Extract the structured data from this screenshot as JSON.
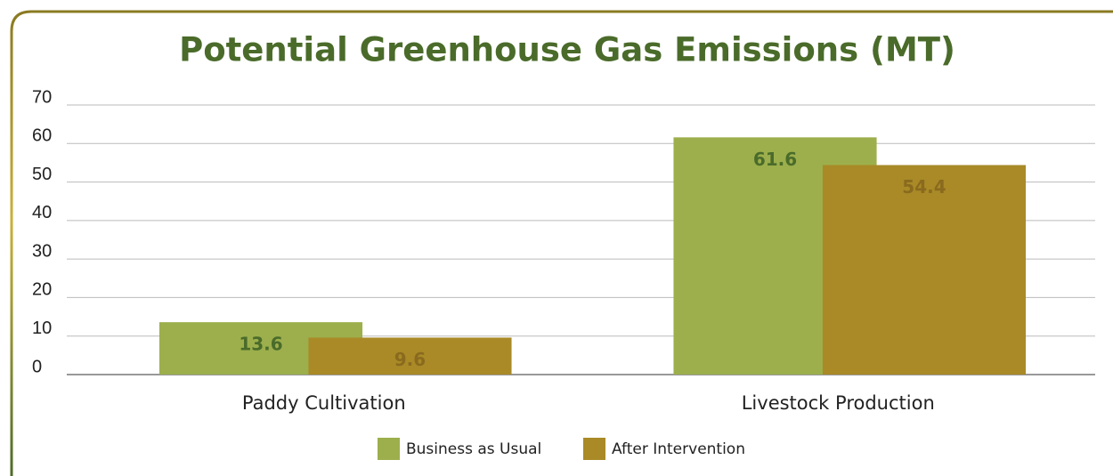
{
  "chart_data": {
    "type": "bar",
    "title": "Potential Greenhouse Gas Emissions (MT)",
    "categories": [
      "Paddy Cultivation",
      "Livestock Production"
    ],
    "series": [
      {
        "name": "Business as Usual",
        "color": "#9caf4c",
        "label_color": "#4a6b2a",
        "values": [
          13.6,
          61.6
        ]
      },
      {
        "name": "After Intervention",
        "color": "#a98a27",
        "label_color": "#8a6a1e",
        "values": [
          9.6,
          54.4
        ]
      }
    ],
    "ylim": [
      0,
      70
    ],
    "yticks": [
      0,
      10,
      20,
      30,
      40,
      50,
      60,
      70
    ],
    "grid": true,
    "legend": "bottom"
  }
}
